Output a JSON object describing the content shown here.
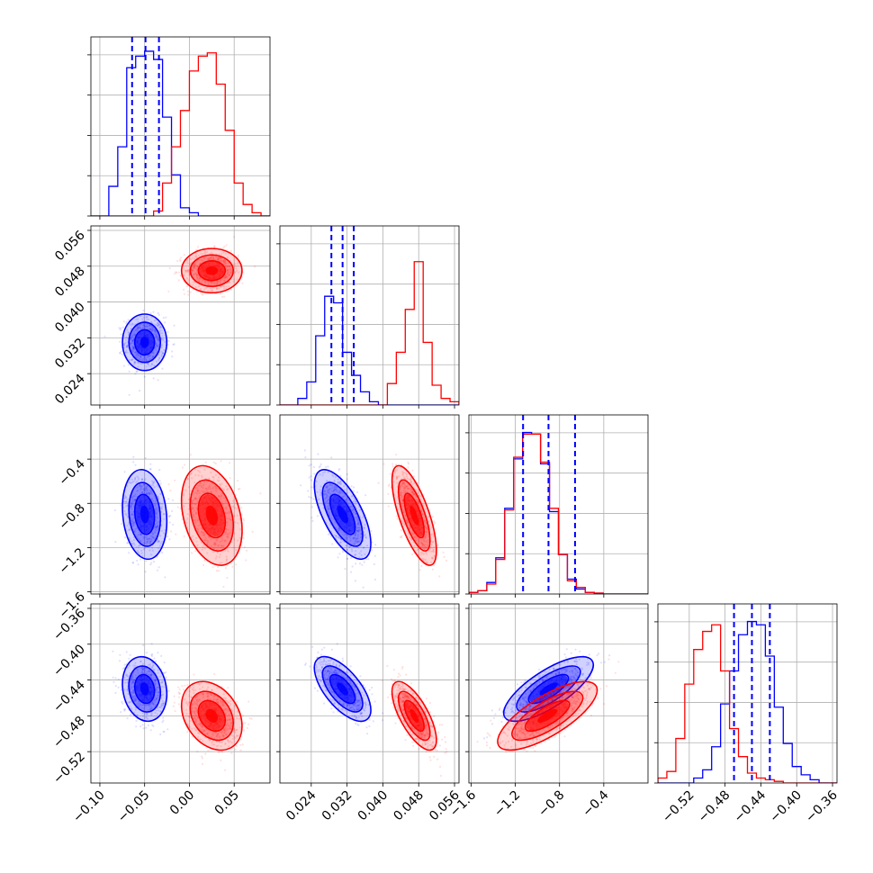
{
  "chart_data": {
    "type": "corner",
    "params": [
      {
        "index": 0,
        "range": [
          -0.11,
          0.09
        ],
        "ticks": [
          "−0.10",
          "−0.05",
          "0.00",
          "0.05"
        ],
        "tick_values": [
          -0.1,
          -0.05,
          0.0,
          0.05
        ],
        "quantiles_blue": [
          -0.064,
          -0.049,
          -0.034
        ]
      },
      {
        "index": 1,
        "range": [
          0.017,
          0.057
        ],
        "ticks": [
          "0.024",
          "0.032",
          "0.040",
          "0.048",
          "0.056"
        ],
        "tick_values": [
          0.024,
          0.032,
          0.04,
          0.048,
          0.056
        ],
        "quantiles_blue": [
          0.0285,
          0.031,
          0.0335
        ]
      },
      {
        "index": 2,
        "range": [
          -1.62,
          0.0
        ],
        "ticks": [
          "−1.6",
          "−1.2",
          "−0.8",
          "−0.4"
        ],
        "tick_values": [
          -1.6,
          -1.2,
          -0.8,
          -0.4
        ],
        "quantiles_blue": [
          -1.13,
          -0.9,
          -0.66
        ]
      },
      {
        "index": 3,
        "range": [
          -0.555,
          -0.355
        ],
        "ticks": [
          "−0.52",
          "−0.48",
          "−0.44",
          "−0.40",
          "−0.36"
        ],
        "tick_values": [
          -0.52,
          -0.48,
          -0.44,
          -0.4,
          -0.36
        ],
        "quantiles_blue": [
          -0.47,
          -0.45,
          -0.43
        ]
      }
    ],
    "series": [
      {
        "color": "#0000ff",
        "means": [
          -0.05,
          0.031,
          -0.9,
          -0.45
        ],
        "sds": [
          0.011,
          0.0028,
          0.18,
          0.016
        ],
        "hist": [
          {
            "edges": [
              -0.11,
              0.09
            ],
            "counts": [
              0.0,
              0.0,
              0.18,
              0.42,
              0.9,
              0.97,
              1.0,
              0.95,
              0.6,
              0.25,
              0.05,
              0.02,
              0,
              0,
              0,
              0,
              0,
              0,
              0,
              0
            ]
          },
          {
            "edges": [
              0.017,
              0.057
            ],
            "counts": [
              0.0,
              0.0,
              0.04,
              0.14,
              0.42,
              0.66,
              0.62,
              0.32,
              0.18,
              0.08,
              0.02,
              0,
              0,
              0,
              0,
              0,
              0,
              0,
              0,
              0
            ]
          },
          {
            "edges": [
              -1.62,
              0.0
            ],
            "counts": [
              0.01,
              0.02,
              0.07,
              0.22,
              0.52,
              0.82,
              0.98,
              0.97,
              0.79,
              0.5,
              0.24,
              0.09,
              0.03,
              0.01,
              0.005,
              0.0,
              0.0,
              0.0,
              0.0,
              0.0
            ]
          },
          {
            "edges": [
              -0.555,
              -0.355
            ],
            "counts": [
              0,
              0,
              0,
              0,
              0.03,
              0.08,
              0.22,
              0.48,
              0.68,
              0.9,
              0.98,
              0.96,
              0.77,
              0.46,
              0.24,
              0.1,
              0.05,
              0.02,
              0.0,
              0.0
            ]
          }
        ]
      },
      {
        "color": "#ff0000",
        "means": [
          0.025,
          0.047,
          -0.91,
          -0.48
        ],
        "sds": [
          0.015,
          0.0022,
          0.2,
          0.017
        ],
        "hist": [
          {
            "edges": [
              -0.11,
              0.09
            ],
            "counts": [
              0,
              0,
              0,
              0,
              0,
              0,
              0,
              0.03,
              0.2,
              0.42,
              0.64,
              0.88,
              0.97,
              0.99,
              0.8,
              0.52,
              0.2,
              0.07,
              0.02,
              0.0
            ]
          },
          {
            "edges": [
              0.017,
              0.057
            ],
            "counts": [
              0,
              0,
              0,
              0,
              0,
              0,
              0,
              0,
              0,
              0,
              0,
              0.0,
              0.13,
              0.32,
              0.58,
              0.87,
              0.38,
              0.12,
              0.04,
              0.02
            ]
          },
          {
            "edges": [
              -1.62,
              0.0
            ],
            "counts": [
              0.01,
              0.02,
              0.06,
              0.21,
              0.51,
              0.83,
              0.97,
              0.97,
              0.8,
              0.52,
              0.24,
              0.08,
              0.04,
              0.01,
              0.005,
              0.0,
              0.0,
              0.0,
              0.0,
              0.0
            ]
          },
          {
            "edges": [
              -0.555,
              -0.355
            ],
            "counts": [
              0.03,
              0.07,
              0.27,
              0.6,
              0.81,
              0.92,
              0.96,
              0.68,
              0.33,
              0.16,
              0.06,
              0.03,
              0.02,
              0.01,
              0.0,
              0.0,
              0,
              0,
              0,
              0
            ]
          }
        ]
      }
    ],
    "correlations": {
      "1,0": [
        0.0,
        0.0
      ],
      "2,0": [
        -0.15,
        -0.3
      ],
      "2,1": [
        -0.65,
        -0.7
      ],
      "3,0": [
        -0.15,
        -0.3
      ],
      "3,1": [
        -0.65,
        -0.7
      ],
      "3,2": [
        0.75,
        0.75
      ]
    },
    "grid": true,
    "legend": "none"
  }
}
